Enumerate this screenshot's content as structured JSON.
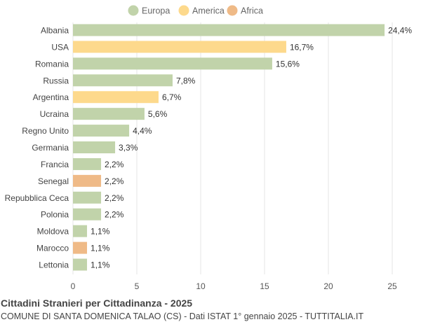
{
  "chart_data": {
    "type": "bar",
    "orientation": "horizontal",
    "title": "Cittadini Stranieri per Cittadinanza - 2025",
    "subtitle": "COMUNE DI SANTA DOMENICA TALAO (CS) - Dati ISTAT 1° gennaio 2025 - TUTTITALIA.IT",
    "legend": {
      "placement": "top",
      "entries": [
        {
          "name": "Europa",
          "color": "#c1d3aa"
        },
        {
          "name": "America",
          "color": "#fdd98c"
        },
        {
          "name": "Africa",
          "color": "#efba87"
        }
      ]
    },
    "categories": [
      "Albania",
      "USA",
      "Romania",
      "Russia",
      "Argentina",
      "Ucraina",
      "Regno Unito",
      "Germania",
      "Francia",
      "Senegal",
      "Repubblica Ceca",
      "Polonia",
      "Moldova",
      "Marocco",
      "Lettonia"
    ],
    "values": [
      24.4,
      16.7,
      15.6,
      7.8,
      6.7,
      5.6,
      4.4,
      3.3,
      2.2,
      2.2,
      2.2,
      2.2,
      1.1,
      1.1,
      1.1
    ],
    "labels": [
      "24,4%",
      "16,7%",
      "15,6%",
      "7,8%",
      "6,7%",
      "5,6%",
      "4,4%",
      "3,3%",
      "2,2%",
      "2,2%",
      "2,2%",
      "2,2%",
      "1,1%",
      "1,1%",
      "1,1%"
    ],
    "groups": [
      "Europa",
      "America",
      "Europa",
      "Europa",
      "America",
      "Europa",
      "Europa",
      "Europa",
      "Europa",
      "Africa",
      "Europa",
      "Europa",
      "Europa",
      "Africa",
      "Europa"
    ],
    "xlim": [
      0,
      25
    ],
    "xticks": [
      0,
      5,
      10,
      15,
      20,
      25
    ],
    "grid": true
  }
}
